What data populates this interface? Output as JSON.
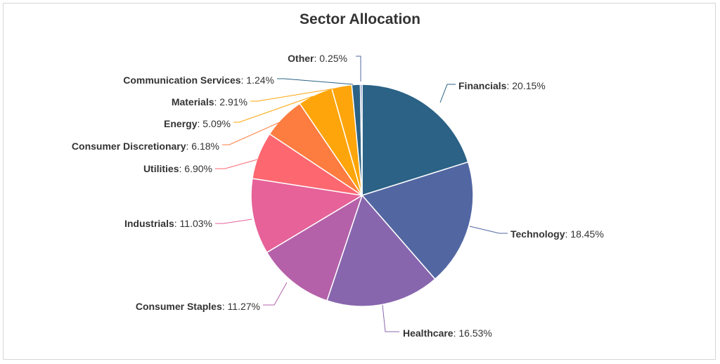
{
  "chart_data": {
    "type": "pie",
    "title": "Sector Allocation",
    "slices": [
      {
        "label": "Financials",
        "value": 20.15,
        "display": "20.15%",
        "color": "#2b6286"
      },
      {
        "label": "Technology",
        "value": 18.45,
        "display": "18.45%",
        "color": "#5267a2"
      },
      {
        "label": "Healthcare",
        "value": 16.53,
        "display": "16.53%",
        "color": "#8866ae"
      },
      {
        "label": "Consumer Staples",
        "value": 11.27,
        "display": "11.27%",
        "color": "#b561a9"
      },
      {
        "label": "Industrials",
        "value": 11.03,
        "display": "11.03%",
        "color": "#e66299"
      },
      {
        "label": "Utilities",
        "value": 6.9,
        "display": "6.90%",
        "color": "#fd6770"
      },
      {
        "label": "Consumer Discretionary",
        "value": 6.18,
        "display": "6.18%",
        "color": "#fd7c3f"
      },
      {
        "label": "Energy",
        "value": 5.09,
        "display": "5.09%",
        "color": "#fda50a"
      },
      {
        "label": "Materials",
        "value": 2.91,
        "display": "2.91%",
        "color": "#fda50a"
      },
      {
        "label": "Communication Services",
        "value": 1.24,
        "display": "1.24%",
        "color": "#2b6286"
      },
      {
        "label": "Other",
        "value": 0.25,
        "display": "0.25%",
        "color": "#5267a2"
      }
    ]
  }
}
